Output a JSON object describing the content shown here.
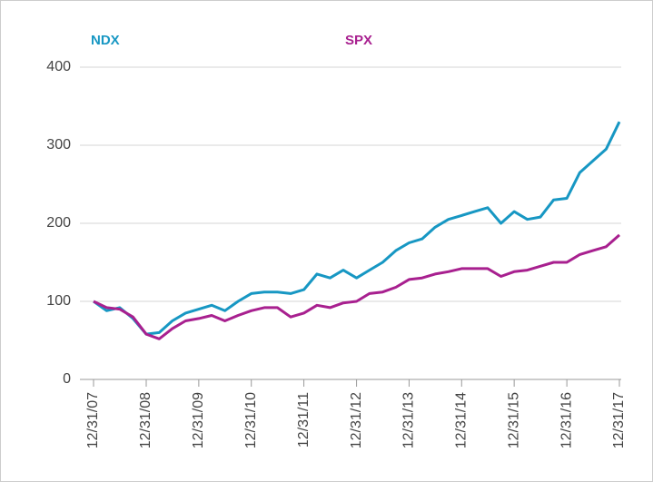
{
  "chart_data": {
    "type": "line",
    "x": [
      "2007-12-31",
      "2008-03-31",
      "2008-06-30",
      "2008-09-30",
      "2008-12-31",
      "2009-03-31",
      "2009-06-30",
      "2009-09-30",
      "2009-12-31",
      "2010-03-31",
      "2010-06-30",
      "2010-09-30",
      "2010-12-31",
      "2011-03-31",
      "2011-06-30",
      "2011-09-30",
      "2011-12-31",
      "2012-03-31",
      "2012-06-30",
      "2012-09-30",
      "2012-12-31",
      "2013-03-31",
      "2013-06-30",
      "2013-09-30",
      "2013-12-31",
      "2014-03-31",
      "2014-06-30",
      "2014-09-30",
      "2014-12-31",
      "2015-03-31",
      "2015-06-30",
      "2015-09-30",
      "2015-12-31",
      "2016-03-31",
      "2016-06-30",
      "2016-09-30",
      "2016-12-31",
      "2017-03-31",
      "2017-06-30",
      "2017-09-30",
      "2017-12-31"
    ],
    "series": [
      {
        "name": "NDX",
        "color": "#1797c3",
        "values": [
          100,
          88,
          92,
          78,
          58,
          60,
          75,
          85,
          90,
          95,
          88,
          100,
          110,
          112,
          112,
          110,
          115,
          135,
          130,
          140,
          130,
          140,
          150,
          165,
          175,
          180,
          195,
          205,
          210,
          215,
          220,
          200,
          215,
          205,
          208,
          230,
          232,
          265,
          280,
          295,
          330
        ]
      },
      {
        "name": "SPX",
        "color": "#a8208f",
        "values": [
          100,
          92,
          90,
          80,
          58,
          52,
          65,
          75,
          78,
          82,
          75,
          82,
          88,
          92,
          92,
          80,
          85,
          95,
          92,
          98,
          100,
          110,
          112,
          118,
          128,
          130,
          135,
          138,
          142,
          142,
          142,
          132,
          138,
          140,
          145,
          150,
          150,
          160,
          165,
          170,
          185
        ]
      }
    ],
    "xlim": [
      "2007-12-31",
      "2017-12-31"
    ],
    "xticks": [
      {
        "value": "2007-12-31",
        "label": "12/31/07"
      },
      {
        "value": "2008-12-31",
        "label": "12/31/08"
      },
      {
        "value": "2009-12-31",
        "label": "12/31/09"
      },
      {
        "value": "2010-12-31",
        "label": "12/31/10"
      },
      {
        "value": "2011-12-31",
        "label": "12/31/11"
      },
      {
        "value": "2012-12-31",
        "label": "12/31/12"
      },
      {
        "value": "2013-12-31",
        "label": "12/31/13"
      },
      {
        "value": "2014-12-31",
        "label": "12/31/14"
      },
      {
        "value": "2015-12-31",
        "label": "12/31/15"
      },
      {
        "value": "2016-12-31",
        "label": "12/31/16"
      },
      {
        "value": "2017-12-31",
        "label": "12/31/17"
      }
    ],
    "ylim": [
      0,
      400
    ],
    "yticks": [
      0,
      100,
      200,
      300,
      400
    ],
    "grid": true
  }
}
